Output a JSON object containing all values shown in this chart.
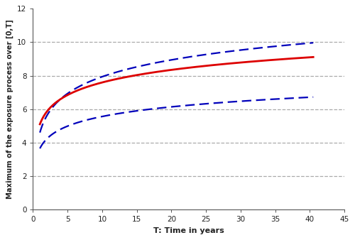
{
  "title": "",
  "xlabel": "T: Time in years",
  "ylabel": "Maximum of the exposure process over [0,T]",
  "xlim": [
    0,
    45
  ],
  "ylim": [
    0,
    12
  ],
  "xticks": [
    0,
    5,
    10,
    15,
    20,
    25,
    30,
    35,
    40,
    45
  ],
  "yticks": [
    0,
    2,
    4,
    6,
    8,
    10,
    12
  ],
  "mean_color": "#dd0000",
  "ci_color": "#0000bb",
  "mean_lw": 2.0,
  "ci_lw": 1.6,
  "t_start": 1.0,
  "t_end": 40.5,
  "background_color": "#ffffff",
  "grid_color": "#aaaaaa",
  "grid_style": "--",
  "grid_lw": 0.9,
  "mean_a": 1.084,
  "mean_c": 5.1,
  "upper_a": 1.45,
  "upper_c": 4.6,
  "lower_a": 0.83,
  "lower_c": 3.65
}
